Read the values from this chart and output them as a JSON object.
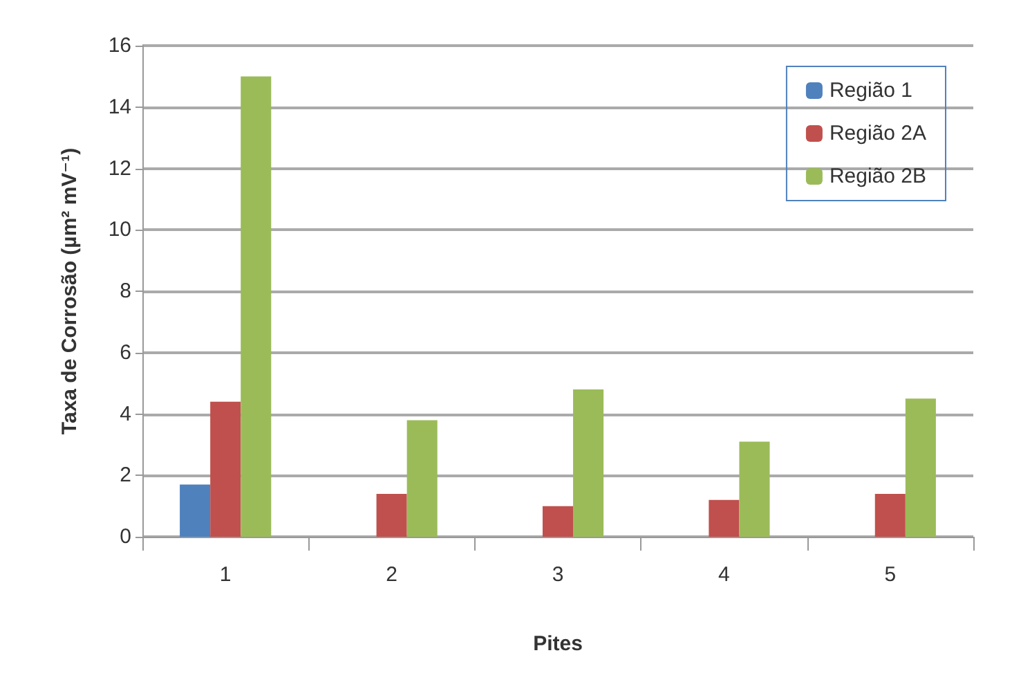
{
  "chart_data": {
    "type": "bar",
    "xlabel": "Pites",
    "ylabel": "Taxa de Corrosão (µm² mV⁻¹)",
    "categories": [
      "1",
      "2",
      "3",
      "4",
      "5"
    ],
    "series": [
      {
        "name": "Região 1",
        "color": "#4f81bd",
        "values": [
          1.7,
          0,
          0,
          0,
          0
        ]
      },
      {
        "name": "Região 2A",
        "color": "#c0504d",
        "values": [
          4.4,
          1.4,
          1.0,
          1.2,
          1.4
        ]
      },
      {
        "name": "Região 2B",
        "color": "#9bbb59",
        "values": [
          15.0,
          3.8,
          4.8,
          3.1,
          4.5
        ]
      }
    ],
    "ylim": [
      0,
      16
    ],
    "yticks": [
      0,
      2,
      4,
      6,
      8,
      10,
      12,
      14,
      16
    ],
    "grid": "y",
    "legend": "top right"
  }
}
